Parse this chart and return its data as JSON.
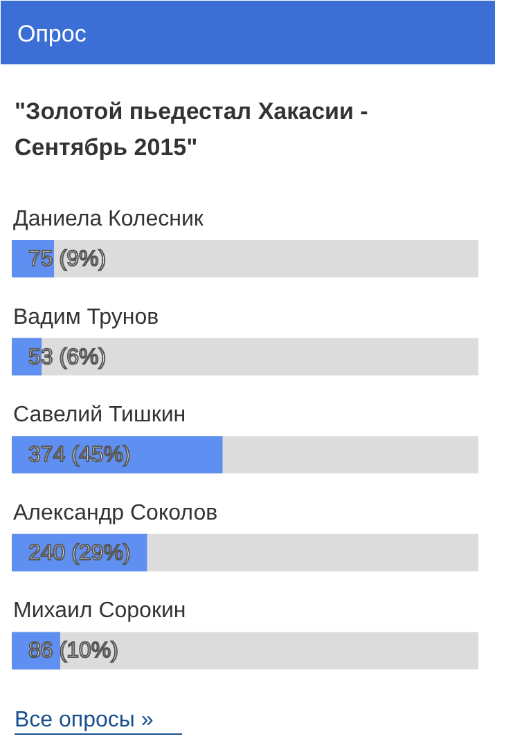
{
  "chart_data": {
    "type": "bar",
    "orientation": "horizontal",
    "title": "Опрос",
    "subtitle": "\"Золотой пьедестал Хакасии - Сентябрь 2015\"",
    "categories": [
      "Даниела Колесник",
      "Вадим Трунов",
      "Савелий Тишкин",
      "Александр Соколов",
      "Михаил Сорокин"
    ],
    "values": [
      75,
      53,
      374,
      240,
      86
    ],
    "value_labels": [
      "75 (9%)",
      "53 (6%)",
      "374 (45%)",
      "240 (29%)",
      "86 (10%)"
    ],
    "color": "#5f8ff0",
    "xlim": [
      0,
      828
    ],
    "annotations": [
      "Все опросы »"
    ]
  }
}
